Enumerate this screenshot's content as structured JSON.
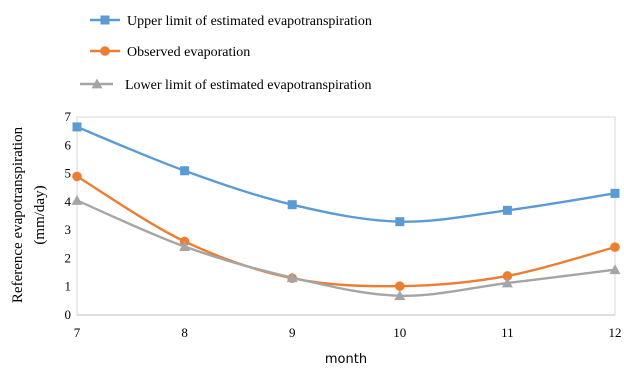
{
  "chart_data": {
    "type": "line",
    "title": "",
    "xlabel": "month",
    "ylabel_line1": "Reference evapotranspiration",
    "ylabel_line2": "(mm/day)",
    "x": [
      7,
      8,
      9,
      10,
      11,
      12
    ],
    "x_ticks": [
      "7",
      "8",
      "9",
      "10",
      "11",
      "12"
    ],
    "y_ticks": [
      "0",
      "1",
      "2",
      "3",
      "4",
      "5",
      "6",
      "7"
    ],
    "xlim": [
      7,
      12
    ],
    "ylim": [
      0,
      7
    ],
    "grid": false,
    "legend_position": "top-left, above plot",
    "smooth": true,
    "series": [
      {
        "name": "Upper limit of estimated evapotranspiration",
        "color": "#5B9BD5",
        "marker": "square",
        "values": [
          6.65,
          5.1,
          3.9,
          3.3,
          3.7,
          4.3
        ]
      },
      {
        "name": "Observed evaporation",
        "color": "#ED7D31",
        "marker": "circle",
        "values": [
          4.9,
          2.6,
          1.3,
          1.02,
          1.38,
          2.4
        ]
      },
      {
        "name": "Lower limit of estimated evapotranspiration",
        "color": "#A5A5A5",
        "marker": "triangle",
        "values": [
          4.05,
          2.42,
          1.32,
          0.68,
          1.13,
          1.6
        ]
      }
    ]
  }
}
